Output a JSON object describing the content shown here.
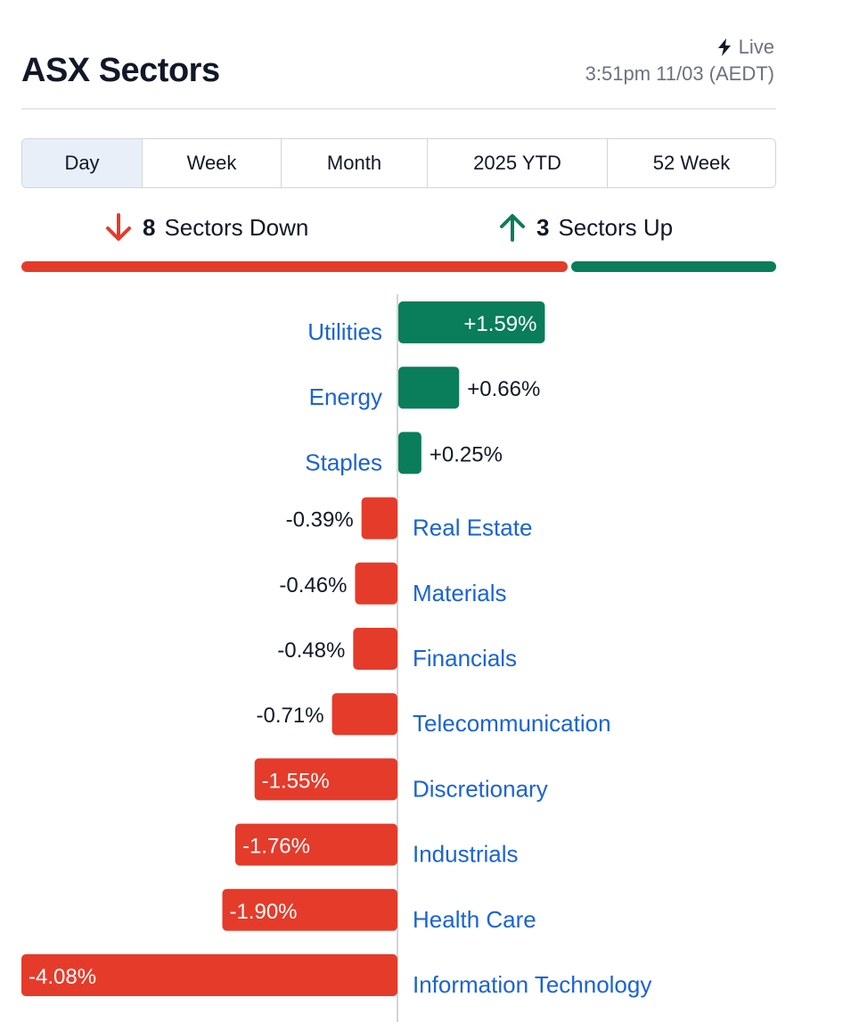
{
  "header": {
    "title": "ASX Sectors",
    "live_label": "Live",
    "timestamp": "3:51pm 11/03 (AEDT)"
  },
  "tabs": [
    {
      "label": "Day",
      "active": true
    },
    {
      "label": "Week",
      "active": false
    },
    {
      "label": "Month",
      "active": false
    },
    {
      "label": "2025 YTD",
      "active": false
    },
    {
      "label": "52 Week",
      "active": false
    }
  ],
  "summary": {
    "down_count": "8",
    "down_label": "Sectors Down",
    "up_count": "3",
    "up_label": "Sectors Up",
    "down_color": "#e53b2b",
    "up_color": "#0a7d5b"
  },
  "chart_data": {
    "type": "bar",
    "orientation": "horizontal",
    "categories": [
      "Utilities",
      "Energy",
      "Staples",
      "Real Estate",
      "Materials",
      "Financials",
      "Telecommunication",
      "Discretionary",
      "Industrials",
      "Health Care",
      "Information Technology"
    ],
    "values": [
      1.59,
      0.66,
      0.25,
      -0.39,
      -0.46,
      -0.48,
      -0.71,
      -1.55,
      -1.76,
      -1.9,
      -4.08
    ],
    "value_labels": [
      "+1.59%",
      "+0.66%",
      "+0.25%",
      "-0.39%",
      "-0.46%",
      "-0.48%",
      "-0.71%",
      "-1.55%",
      "-1.76%",
      "-1.90%",
      "-4.08%"
    ],
    "positive_color": "#0a7d5b",
    "negative_color": "#e53b2b",
    "xlim": [
      -4.08,
      4.08
    ]
  }
}
